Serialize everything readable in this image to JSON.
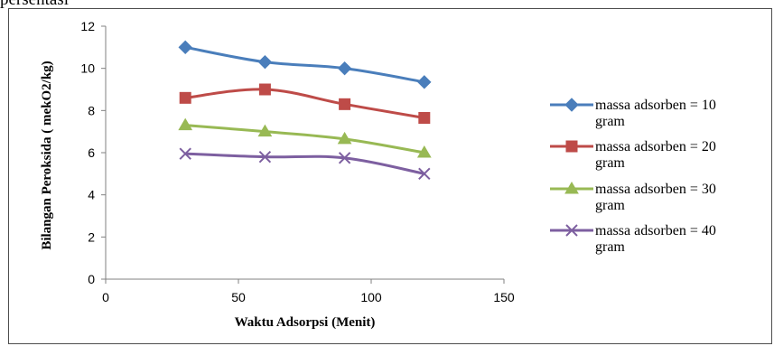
{
  "page": {
    "top_fragment": "persentasi"
  },
  "chart_data": {
    "type": "line",
    "title": "",
    "xlabel": "Waktu Adsorpsi (Menit)",
    "ylabel": "Bilangan Peroksida ( mekO2/kg)",
    "xlim": [
      0,
      150
    ],
    "ylim": [
      0,
      12
    ],
    "x_ticks": [
      0,
      50,
      100,
      150
    ],
    "y_ticks": [
      0,
      2,
      4,
      6,
      8,
      10,
      12
    ],
    "x": [
      30,
      60,
      90,
      120
    ],
    "grid": false,
    "legend_position": "right",
    "series": [
      {
        "name": "massa adsorben = 10 gram",
        "label_lines": [
          "massa adsorben = 10",
          "gram"
        ],
        "values": [
          11.0,
          10.3,
          10.0,
          9.35
        ],
        "color": "#4a7ebb",
        "marker": "diamond"
      },
      {
        "name": "massa adsorben = 20 gram",
        "label_lines": [
          "massa adsorben = 20",
          "gram"
        ],
        "values": [
          8.6,
          9.0,
          8.3,
          7.65
        ],
        "color": "#be4b48",
        "marker": "square"
      },
      {
        "name": "massa adsorben = 30 gram",
        "label_lines": [
          "massa adsorben = 30",
          "gram"
        ],
        "values": [
          7.3,
          7.0,
          6.65,
          6.0
        ],
        "color": "#98b954",
        "marker": "triangle"
      },
      {
        "name": "massa adsorben = 40 gram",
        "label_lines": [
          "massa adsorben = 40",
          "gram"
        ],
        "values": [
          5.95,
          5.8,
          5.75,
          5.0
        ],
        "color": "#7d5fa0",
        "marker": "x"
      }
    ]
  }
}
